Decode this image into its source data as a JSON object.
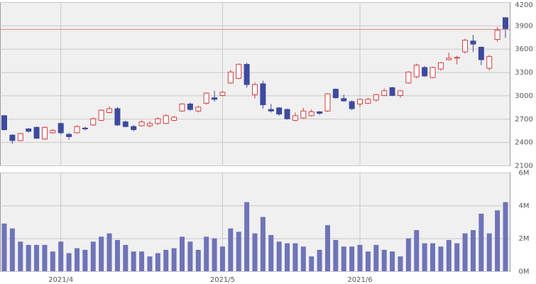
{
  "chart_data": [
    {
      "type": "candlestick",
      "open": [
        2740,
        2490,
        2420,
        2570,
        2590,
        2440,
        2520,
        2640,
        2500,
        2520,
        2580,
        2620,
        2680,
        2780,
        2830,
        2660,
        2600,
        2610,
        2610,
        2640,
        2640,
        2680,
        2800,
        2890,
        2800,
        2900,
        2970,
        3000,
        3160,
        3220,
        3400,
        3010,
        3150,
        2820,
        2840,
        2820,
        2680,
        2710,
        2740,
        2790,
        2800,
        3080,
        2960,
        2920,
        2890,
        2900,
        2940,
        3000,
        3100,
        3000,
        3160,
        3240,
        3360,
        3230,
        3340,
        3460,
        3480,
        3560,
        3700,
        3620,
        3350,
        3720,
        4000
      ],
      "high": [
        2750,
        2500,
        2520,
        2580,
        2600,
        2600,
        2570,
        2650,
        2520,
        2620,
        2600,
        2720,
        2820,
        2860,
        2850,
        2680,
        2620,
        2680,
        2670,
        2720,
        2760,
        2740,
        2900,
        2910,
        2870,
        3040,
        3060,
        3060,
        3330,
        3410,
        3420,
        3170,
        3190,
        2890,
        2850,
        2830,
        2780,
        2840,
        2820,
        2800,
        3030,
        3090,
        3010,
        2940,
        2960,
        2970,
        3020,
        3090,
        3110,
        3070,
        3310,
        3410,
        3380,
        3370,
        3430,
        3550,
        3510,
        3730,
        3780,
        3630,
        3520,
        3880,
        4000
      ],
      "low": [
        2550,
        2380,
        2410,
        2520,
        2440,
        2430,
        2510,
        2500,
        2430,
        2510,
        2550,
        2610,
        2670,
        2770,
        2610,
        2590,
        2540,
        2600,
        2590,
        2620,
        2630,
        2670,
        2790,
        2800,
        2780,
        2880,
        2920,
        2990,
        3150,
        3210,
        3100,
        2960,
        2830,
        2780,
        2740,
        2690,
        2670,
        2700,
        2730,
        2750,
        2790,
        2960,
        2920,
        2810,
        2850,
        2890,
        2920,
        2990,
        2990,
        2970,
        3150,
        3220,
        3240,
        3220,
        3320,
        3450,
        3400,
        3540,
        3560,
        3390,
        3320,
        3690,
        3740
      ],
      "close": [
        2560,
        2420,
        2510,
        2540,
        2450,
        2590,
        2550,
        2520,
        2470,
        2600,
        2570,
        2700,
        2810,
        2830,
        2620,
        2600,
        2560,
        2660,
        2640,
        2700,
        2740,
        2720,
        2890,
        2820,
        2850,
        3030,
        2950,
        3040,
        3300,
        3400,
        3140,
        3140,
        2880,
        2800,
        2760,
        2700,
        2740,
        2800,
        2790,
        2770,
        3020,
        2970,
        2930,
        2830,
        2950,
        2950,
        3010,
        3060,
        3000,
        3060,
        3300,
        3390,
        3250,
        3360,
        3420,
        3480,
        3490,
        3710,
        3660,
        3460,
        3500,
        3840,
        3860
      ],
      "up_color": "#d63b3b",
      "down_color": "#3d4a9e",
      "ylim": [
        2100,
        4200
      ],
      "yticks": [
        2100,
        2400,
        2700,
        3000,
        3300,
        3600,
        3900,
        4200
      ],
      "hline": 3850,
      "hline_color": "#d9868a",
      "grid": true
    },
    {
      "type": "bar",
      "categories": [
        null,
        null,
        null,
        null,
        null,
        null,
        null,
        "2021/4",
        null,
        null,
        null,
        null,
        null,
        null,
        null,
        null,
        null,
        null,
        null,
        null,
        null,
        null,
        null,
        null,
        null,
        null,
        null,
        "2021/5",
        null,
        null,
        null,
        null,
        null,
        null,
        null,
        null,
        null,
        null,
        null,
        null,
        null,
        null,
        null,
        null,
        "2021/6",
        null,
        null,
        null,
        null,
        null,
        null,
        null,
        null,
        null,
        null,
        null,
        null,
        null,
        null,
        null,
        null,
        null,
        null
      ],
      "values": [
        2900000,
        2600000,
        1800000,
        1600000,
        1600000,
        1600000,
        1200000,
        1800000,
        1100000,
        1400000,
        1300000,
        1800000,
        2100000,
        2300000,
        1900000,
        1600000,
        1200000,
        1200000,
        900000,
        1100000,
        1300000,
        1400000,
        2100000,
        1800000,
        1300000,
        2100000,
        2000000,
        1500000,
        2600000,
        2400000,
        4200000,
        2300000,
        3300000,
        2200000,
        1800000,
        1700000,
        1700000,
        1500000,
        900000,
        1300000,
        2800000,
        1900000,
        1500000,
        1500000,
        1600000,
        1200000,
        1600000,
        1300000,
        1200000,
        900000,
        2000000,
        2500000,
        1700000,
        1700000,
        1500000,
        1900000,
        1700000,
        2300000,
        2500000,
        3500000,
        2300000,
        3700000,
        4200000
      ],
      "color": "#6f74b8",
      "ylim": [
        0,
        6000000
      ],
      "yticks": [
        {
          "value": 0,
          "label": "0M"
        },
        {
          "value": 2000000,
          "label": "2M"
        },
        {
          "value": 4000000,
          "label": "4M"
        },
        {
          "value": 6000000,
          "label": "6M"
        }
      ],
      "grid": true
    }
  ]
}
